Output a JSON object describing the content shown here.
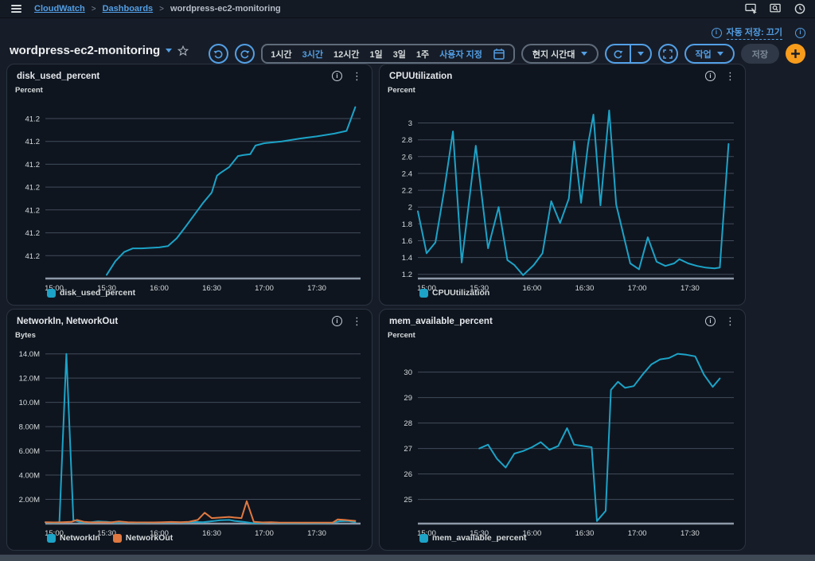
{
  "topnav": {
    "separator": ">",
    "breadcrumbs": [
      {
        "label": "CloudWatch"
      },
      {
        "label": "Dashboards"
      },
      {
        "label": "wordpress-ec2-monitoring"
      }
    ]
  },
  "header": {
    "title": "wordpress-ec2-monitoring",
    "autosave_label": "자동 저장: 끄기",
    "time_ranges": {
      "r1": "1시간",
      "r2": "3시간",
      "r3": "12시간",
      "r4": "1일",
      "r5": "3일",
      "r6": "1주"
    },
    "selected_range": "3시간",
    "custom_range_label": "사용자 지정",
    "timezone_label": "현지 시간대",
    "actions_label": "작업",
    "save_label": "저장"
  },
  "colors": {
    "accent_blue": "#539fe5",
    "series_cyan": "#1ca3c7",
    "series_orange": "#e07941",
    "add_button_orange": "#f89c1c"
  },
  "chart_data": [
    {
      "type": "line",
      "title": "disk_used_percent",
      "unit": "Percent",
      "x_range": [
        0,
        180
      ],
      "x_ticks": [
        {
          "x": 5,
          "label": "15:00"
        },
        {
          "x": 35,
          "label": "15:30"
        },
        {
          "x": 65,
          "label": "16:00"
        },
        {
          "x": 95,
          "label": "16:30"
        },
        {
          "x": 125,
          "label": "17:00"
        },
        {
          "x": 155,
          "label": "17:30"
        }
      ],
      "y_range": [
        41.15,
        41.189
      ],
      "y_ticks": [
        {
          "v": 41.155,
          "label": "41.2"
        },
        {
          "v": 41.16,
          "label": "41.2"
        },
        {
          "v": 41.165,
          "label": "41.2"
        },
        {
          "v": 41.17,
          "label": "41.2"
        },
        {
          "v": 41.175,
          "label": "41.2"
        },
        {
          "v": 41.18,
          "label": "41.2"
        },
        {
          "v": 41.185,
          "label": "41.2"
        }
      ],
      "series": [
        {
          "name": "disk_used_percent",
          "color": "#1ca3c7",
          "points": [
            [
              35,
              41.1508
            ],
            [
              40,
              41.1538
            ],
            [
              45,
              41.1558
            ],
            [
              50,
              41.1566
            ],
            [
              55,
              41.1566
            ],
            [
              60,
              41.1567
            ],
            [
              65,
              41.1568
            ],
            [
              70,
              41.1571
            ],
            [
              75,
              41.1588
            ],
            [
              80,
              41.1613
            ],
            [
              85,
              41.1639
            ],
            [
              90,
              41.1665
            ],
            [
              95,
              41.1688
            ],
            [
              98,
              41.1725
            ],
            [
              100,
              41.1731
            ],
            [
              105,
              41.1744
            ],
            [
              110,
              41.1768
            ],
            [
              113,
              41.177
            ],
            [
              117,
              41.1772
            ],
            [
              120,
              41.1791
            ],
            [
              125,
              41.1796
            ],
            [
              135,
              41.18
            ],
            [
              145,
              41.1806
            ],
            [
              155,
              41.1811
            ],
            [
              165,
              41.1817
            ],
            [
              172,
              41.1823
            ],
            [
              177,
              41.1875
            ]
          ]
        }
      ]
    },
    {
      "type": "line",
      "title": "CPUUtilization",
      "unit": "Percent",
      "x_range": [
        0,
        180
      ],
      "x_ticks": [
        {
          "x": 5,
          "label": "15:00"
        },
        {
          "x": 35,
          "label": "15:30"
        },
        {
          "x": 65,
          "label": "16:00"
        },
        {
          "x": 95,
          "label": "16:30"
        },
        {
          "x": 125,
          "label": "17:00"
        },
        {
          "x": 155,
          "label": "17:30"
        }
      ],
      "y_range": [
        1.15,
        3.27
      ],
      "y_ticks": [
        {
          "v": 1.2,
          "label": "1.2"
        },
        {
          "v": 1.4,
          "label": "1.4"
        },
        {
          "v": 1.6,
          "label": "1.6"
        },
        {
          "v": 1.8,
          "label": "1.8"
        },
        {
          "v": 2.0,
          "label": "2"
        },
        {
          "v": 2.2,
          "label": "2.2"
        },
        {
          "v": 2.4,
          "label": "2.4"
        },
        {
          "v": 2.6,
          "label": "2.6"
        },
        {
          "v": 2.8,
          "label": "2.8"
        },
        {
          "v": 3.0,
          "label": "3"
        }
      ],
      "series": [
        {
          "name": "CPUUtilization",
          "color": "#1ca3c7",
          "points": [
            [
              0,
              1.95
            ],
            [
              5,
              1.45
            ],
            [
              10,
              1.58
            ],
            [
              15,
              2.2
            ],
            [
              20,
              2.9
            ],
            [
              25,
              1.34
            ],
            [
              33,
              2.73
            ],
            [
              40,
              1.51
            ],
            [
              46,
              2.0
            ],
            [
              51,
              1.37
            ],
            [
              55,
              1.31
            ],
            [
              60,
              1.19
            ],
            [
              66,
              1.31
            ],
            [
              71,
              1.45
            ],
            [
              76,
              2.07
            ],
            [
              81,
              1.81
            ],
            [
              86,
              2.1
            ],
            [
              89,
              2.78
            ],
            [
              93,
              2.05
            ],
            [
              97,
              2.75
            ],
            [
              100,
              3.1
            ],
            [
              104,
              2.02
            ],
            [
              109,
              3.15
            ],
            [
              113,
              2.03
            ],
            [
              121,
              1.33
            ],
            [
              126,
              1.26
            ],
            [
              131,
              1.64
            ],
            [
              136,
              1.35
            ],
            [
              141,
              1.3
            ],
            [
              146,
              1.33
            ],
            [
              149,
              1.38
            ],
            [
              154,
              1.33
            ],
            [
              159,
              1.3
            ],
            [
              164,
              1.28
            ],
            [
              169,
              1.27
            ],
            [
              172,
              1.28
            ],
            [
              177,
              2.75
            ]
          ]
        }
      ]
    },
    {
      "type": "line",
      "title": "NetworkIn, NetworkOut",
      "unit": "Bytes",
      "x_range": [
        0,
        180
      ],
      "x_ticks": [
        {
          "x": 5,
          "label": "15:00"
        },
        {
          "x": 35,
          "label": "15:30"
        },
        {
          "x": 65,
          "label": "16:00"
        },
        {
          "x": 95,
          "label": "16:30"
        },
        {
          "x": 125,
          "label": "17:00"
        },
        {
          "x": 155,
          "label": "17:30"
        }
      ],
      "y_range": [
        0,
        14.7
      ],
      "y_ticks": [
        {
          "v": 2,
          "label": "2.00M"
        },
        {
          "v": 4,
          "label": "4.00M"
        },
        {
          "v": 6,
          "label": "6.00M"
        },
        {
          "v": 8,
          "label": "8.00M"
        },
        {
          "v": 10,
          "label": "10.0M"
        },
        {
          "v": 12,
          "label": "12.0M"
        },
        {
          "v": 14,
          "label": "14.0M"
        }
      ],
      "series": [
        {
          "name": "NetworkIn",
          "color": "#1ca3c7",
          "points": [
            [
              0,
              0.1
            ],
            [
              5,
              0.06
            ],
            [
              8,
              0.08
            ],
            [
              12,
              14.0
            ],
            [
              16,
              0.3
            ],
            [
              20,
              0.12
            ],
            [
              25,
              0.1
            ],
            [
              30,
              0.18
            ],
            [
              35,
              0.15
            ],
            [
              40,
              0.08
            ],
            [
              45,
              0.12
            ],
            [
              50,
              0.08
            ],
            [
              55,
              0.06
            ],
            [
              60,
              0.07
            ],
            [
              65,
              0.09
            ],
            [
              70,
              0.1
            ],
            [
              75,
              0.12
            ],
            [
              80,
              0.1
            ],
            [
              85,
              0.14
            ],
            [
              90,
              0.12
            ],
            [
              95,
              0.2
            ],
            [
              100,
              0.28
            ],
            [
              105,
              0.3
            ],
            [
              108,
              0.22
            ],
            [
              113,
              0.15
            ],
            [
              118,
              0.05
            ],
            [
              123,
              0.04
            ],
            [
              128,
              0.1
            ],
            [
              133,
              0.05
            ],
            [
              138,
              0.04
            ],
            [
              143,
              0.04
            ],
            [
              148,
              0.05
            ],
            [
              153,
              0.04
            ],
            [
              158,
              0.04
            ],
            [
              163,
              0.05
            ],
            [
              168,
              0.2
            ],
            [
              173,
              0.22
            ],
            [
              177,
              0.12
            ]
          ]
        },
        {
          "name": "NetworkOut",
          "color": "#e07941",
          "points": [
            [
              0,
              0.12
            ],
            [
              5,
              0.1
            ],
            [
              10,
              0.12
            ],
            [
              15,
              0.15
            ],
            [
              18,
              0.3
            ],
            [
              22,
              0.15
            ],
            [
              27,
              0.1
            ],
            [
              32,
              0.12
            ],
            [
              37,
              0.1
            ],
            [
              42,
              0.18
            ],
            [
              47,
              0.12
            ],
            [
              52,
              0.1
            ],
            [
              57,
              0.1
            ],
            [
              62,
              0.1
            ],
            [
              67,
              0.12
            ],
            [
              72,
              0.14
            ],
            [
              77,
              0.12
            ],
            [
              82,
              0.15
            ],
            [
              87,
              0.3
            ],
            [
              91,
              0.9
            ],
            [
              95,
              0.45
            ],
            [
              100,
              0.5
            ],
            [
              105,
              0.55
            ],
            [
              108,
              0.5
            ],
            [
              112,
              0.45
            ],
            [
              115,
              1.85
            ],
            [
              119,
              0.15
            ],
            [
              124,
              0.1
            ],
            [
              129,
              0.12
            ],
            [
              134,
              0.08
            ],
            [
              139,
              0.08
            ],
            [
              144,
              0.08
            ],
            [
              149,
              0.08
            ],
            [
              154,
              0.08
            ],
            [
              159,
              0.08
            ],
            [
              164,
              0.08
            ],
            [
              167,
              0.35
            ],
            [
              171,
              0.3
            ],
            [
              175,
              0.25
            ],
            [
              177,
              0.22
            ]
          ]
        }
      ]
    },
    {
      "type": "line",
      "title": "mem_available_percent",
      "unit": "Percent",
      "x_range": [
        0,
        180
      ],
      "x_ticks": [
        {
          "x": 5,
          "label": "15:00"
        },
        {
          "x": 35,
          "label": "15:30"
        },
        {
          "x": 65,
          "label": "16:00"
        },
        {
          "x": 95,
          "label": "16:30"
        },
        {
          "x": 125,
          "label": "17:00"
        },
        {
          "x": 155,
          "label": "17:30"
        }
      ],
      "y_range": [
        24.05,
        31.05
      ],
      "y_ticks": [
        {
          "v": 25,
          "label": "25"
        },
        {
          "v": 26,
          "label": "26"
        },
        {
          "v": 27,
          "label": "27"
        },
        {
          "v": 28,
          "label": "28"
        },
        {
          "v": 29,
          "label": "29"
        },
        {
          "v": 30,
          "label": "30"
        }
      ],
      "series": [
        {
          "name": "mem_available_percent",
          "color": "#1ca3c7",
          "points": [
            [
              35,
              27.0
            ],
            [
              40,
              27.15
            ],
            [
              45,
              26.6
            ],
            [
              50,
              26.25
            ],
            [
              55,
              26.8
            ],
            [
              60,
              26.9
            ],
            [
              65,
              27.05
            ],
            [
              70,
              27.25
            ],
            [
              75,
              26.95
            ],
            [
              80,
              27.1
            ],
            [
              85,
              27.8
            ],
            [
              89,
              27.15
            ],
            [
              94,
              27.1
            ],
            [
              99,
              27.05
            ],
            [
              102,
              24.15
            ],
            [
              107,
              24.55
            ],
            [
              110,
              29.3
            ],
            [
              114,
              29.62
            ],
            [
              118,
              29.38
            ],
            [
              123,
              29.45
            ],
            [
              128,
              29.9
            ],
            [
              133,
              30.3
            ],
            [
              138,
              30.5
            ],
            [
              143,
              30.55
            ],
            [
              148,
              30.72
            ],
            [
              153,
              30.68
            ],
            [
              158,
              30.62
            ],
            [
              163,
              29.9
            ],
            [
              168,
              29.42
            ],
            [
              172,
              29.75
            ]
          ]
        }
      ]
    }
  ]
}
